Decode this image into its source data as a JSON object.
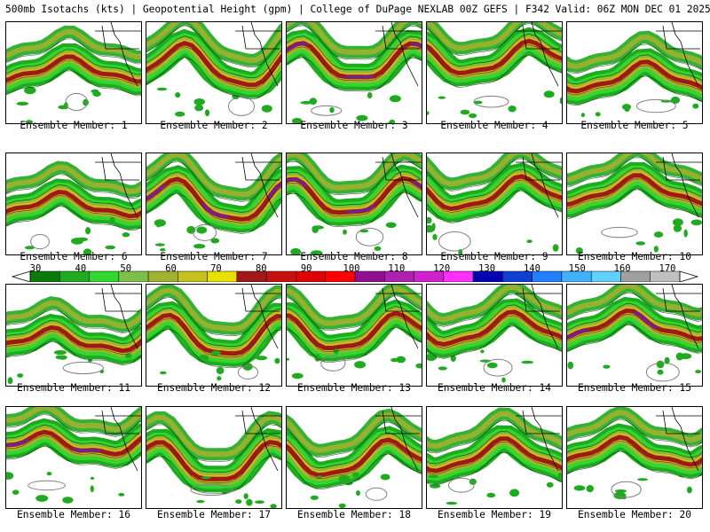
{
  "header": {
    "title": "500mb Isotachs (kts) | Geopotential Height (gpm) | College of DuPage NEXLAB   00Z GEFS | F342 Valid: 06Z MON DEC 01 2025"
  },
  "panels": [
    {
      "label": "Ensemble Member: 1"
    },
    {
      "label": "Ensemble Member: 2"
    },
    {
      "label": "Ensemble Member: 3"
    },
    {
      "label": "Ensemble Member: 4"
    },
    {
      "label": "Ensemble Member: 5"
    },
    {
      "label": "Ensemble Member: 6"
    },
    {
      "label": "Ensemble Member: 7"
    },
    {
      "label": "Ensemble Member: 8"
    },
    {
      "label": "Ensemble Member: 9"
    },
    {
      "label": "Ensemble Member: 10"
    },
    {
      "label": "Ensemble Member: 11"
    },
    {
      "label": "Ensemble Member: 12"
    },
    {
      "label": "Ensemble Member: 13"
    },
    {
      "label": "Ensemble Member: 14"
    },
    {
      "label": "Ensemble Member: 15"
    },
    {
      "label": "Ensemble Member: 16"
    },
    {
      "label": "Ensemble Member: 17"
    },
    {
      "label": "Ensemble Member: 18"
    },
    {
      "label": "Ensemble Member: 19"
    },
    {
      "label": "Ensemble Member: 20"
    }
  ],
  "colorbar": {
    "labels": [
      "30",
      "40",
      "50",
      "60",
      "70",
      "80",
      "90",
      "100",
      "110",
      "120",
      "130",
      "140",
      "150",
      "160",
      "170"
    ],
    "colors": [
      "#0a7a0a",
      "#1faa1f",
      "#2ed82e",
      "#7cc04a",
      "#a0b030",
      "#c8c020",
      "#e8e000",
      "#a01818",
      "#c81010",
      "#e00000",
      "#ff0000",
      "#901090",
      "#b020b0",
      "#d020d0",
      "#ff30ff",
      "#0000b0",
      "#1040d0",
      "#2080ff",
      "#40b0ff",
      "#60d0ff",
      "#a0a0a0",
      "#c0c0c0"
    ]
  },
  "colors": {
    "low_jet": "#1faa1f",
    "mid_jet": "#a0b030",
    "high_jet": "#a01818",
    "peak_jet": "#7020a0",
    "height_contours": "#000000",
    "boundaries": "#000000"
  }
}
